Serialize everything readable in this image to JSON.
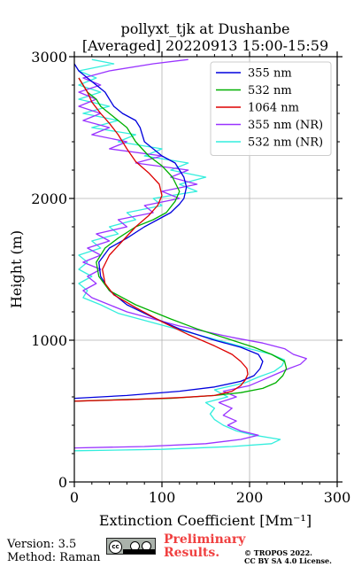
{
  "chart_data": {
    "type": "line",
    "orientation": "vertical-profile",
    "title": [
      "pollyxt_tjk at Dushanbe",
      "[Averaged] 20220913 15:00-15:59"
    ],
    "xlabel": "Extinction Coefficient [Mm⁻¹]",
    "ylabel": "Height (m)",
    "xlim": [
      0,
      300
    ],
    "ylim": [
      0,
      3000
    ],
    "xticks": [
      0,
      100,
      200,
      300
    ],
    "yticks": [
      0,
      1000,
      2000,
      3000
    ],
    "grid": true,
    "legend_position": "top-right",
    "series": [
      {
        "name": "355 nm",
        "color": "#0000dd",
        "points": [
          [
            0,
            590
          ],
          [
            60,
            610
          ],
          [
            120,
            640
          ],
          [
            160,
            670
          ],
          [
            190,
            710
          ],
          [
            205,
            750
          ],
          [
            212,
            800
          ],
          [
            215,
            850
          ],
          [
            210,
            900
          ],
          [
            190,
            950
          ],
          [
            160,
            1000
          ],
          [
            120,
            1080
          ],
          [
            90,
            1160
          ],
          [
            60,
            1250
          ],
          [
            40,
            1350
          ],
          [
            30,
            1450
          ],
          [
            28,
            1550
          ],
          [
            40,
            1650
          ],
          [
            60,
            1720
          ],
          [
            80,
            1800
          ],
          [
            95,
            1850
          ],
          [
            110,
            1900
          ],
          [
            120,
            1960
          ],
          [
            125,
            2000
          ],
          [
            128,
            2080
          ],
          [
            125,
            2150
          ],
          [
            115,
            2250
          ],
          [
            100,
            2300
          ],
          [
            80,
            2400
          ],
          [
            75,
            2500
          ],
          [
            70,
            2550
          ],
          [
            55,
            2600
          ],
          [
            45,
            2650
          ],
          [
            40,
            2700
          ],
          [
            35,
            2750
          ],
          [
            25,
            2800
          ],
          [
            15,
            2850
          ],
          [
            5,
            2900
          ],
          [
            0,
            2950
          ]
        ]
      },
      {
        "name": "532 nm",
        "color": "#00b000",
        "points": [
          [
            0,
            570
          ],
          [
            50,
            580
          ],
          [
            110,
            590
          ],
          [
            160,
            610
          ],
          [
            190,
            630
          ],
          [
            215,
            660
          ],
          [
            230,
            700
          ],
          [
            238,
            750
          ],
          [
            242,
            800
          ],
          [
            240,
            850
          ],
          [
            225,
            900
          ],
          [
            205,
            950
          ],
          [
            180,
            1000
          ],
          [
            140,
            1080
          ],
          [
            110,
            1150
          ],
          [
            70,
            1250
          ],
          [
            40,
            1350
          ],
          [
            28,
            1450
          ],
          [
            25,
            1550
          ],
          [
            35,
            1650
          ],
          [
            50,
            1720
          ],
          [
            70,
            1800
          ],
          [
            90,
            1850
          ],
          [
            105,
            1900
          ],
          [
            115,
            1980
          ],
          [
            120,
            2050
          ],
          [
            112,
            2150
          ],
          [
            100,
            2230
          ],
          [
            85,
            2300
          ],
          [
            70,
            2400
          ],
          [
            60,
            2500
          ],
          [
            50,
            2550
          ],
          [
            40,
            2600
          ],
          [
            30,
            2650
          ],
          [
            25,
            2700
          ],
          [
            15,
            2750
          ],
          [
            10,
            2800
          ],
          [
            5,
            2850
          ]
        ]
      },
      {
        "name": "1064 nm",
        "color": "#dd0000",
        "points": [
          [
            0,
            570
          ],
          [
            60,
            580
          ],
          [
            120,
            595
          ],
          [
            160,
            610
          ],
          [
            180,
            640
          ],
          [
            190,
            680
          ],
          [
            195,
            720
          ],
          [
            198,
            760
          ],
          [
            197,
            800
          ],
          [
            190,
            850
          ],
          [
            180,
            900
          ],
          [
            160,
            960
          ],
          [
            130,
            1040
          ],
          [
            100,
            1130
          ],
          [
            70,
            1230
          ],
          [
            45,
            1320
          ],
          [
            35,
            1400
          ],
          [
            32,
            1500
          ],
          [
            40,
            1600
          ],
          [
            55,
            1700
          ],
          [
            70,
            1800
          ],
          [
            85,
            1880
          ],
          [
            95,
            1950
          ],
          [
            100,
            2020
          ],
          [
            97,
            2100
          ],
          [
            85,
            2180
          ],
          [
            70,
            2260
          ],
          [
            60,
            2350
          ],
          [
            50,
            2450
          ],
          [
            40,
            2530
          ],
          [
            30,
            2600
          ],
          [
            20,
            2680
          ],
          [
            15,
            2750
          ],
          [
            10,
            2800
          ],
          [
            5,
            2850
          ]
        ]
      },
      {
        "name": "355 nm (NR)",
        "color": "#9933ff",
        "points": [
          [
            0,
            240
          ],
          [
            80,
            250
          ],
          [
            150,
            270
          ],
          [
            190,
            300
          ],
          [
            210,
            330
          ],
          [
            190,
            360
          ],
          [
            175,
            400
          ],
          [
            185,
            430
          ],
          [
            170,
            470
          ],
          [
            180,
            520
          ],
          [
            165,
            560
          ],
          [
            185,
            600
          ],
          [
            170,
            640
          ],
          [
            200,
            680
          ],
          [
            215,
            720
          ],
          [
            230,
            760
          ],
          [
            245,
            800
          ],
          [
            258,
            830
          ],
          [
            265,
            870
          ],
          [
            250,
            900
          ],
          [
            240,
            940
          ],
          [
            215,
            980
          ],
          [
            180,
            1020
          ],
          [
            150,
            1060
          ],
          [
            120,
            1100
          ],
          [
            90,
            1150
          ],
          [
            60,
            1200
          ],
          [
            40,
            1250
          ],
          [
            20,
            1300
          ],
          [
            10,
            1350
          ],
          [
            25,
            1400
          ],
          [
            15,
            1450
          ],
          [
            30,
            1500
          ],
          [
            10,
            1550
          ],
          [
            30,
            1600
          ],
          [
            15,
            1650
          ],
          [
            40,
            1700
          ],
          [
            25,
            1750
          ],
          [
            60,
            1800
          ],
          [
            50,
            1850
          ],
          [
            90,
            1900
          ],
          [
            80,
            1950
          ],
          [
            120,
            2000
          ],
          [
            100,
            2050
          ],
          [
            140,
            2100
          ],
          [
            110,
            2150
          ],
          [
            130,
            2200
          ],
          [
            70,
            2250
          ],
          [
            100,
            2300
          ],
          [
            40,
            2350
          ],
          [
            60,
            2400
          ],
          [
            20,
            2450
          ],
          [
            40,
            2500
          ],
          [
            10,
            2550
          ],
          [
            30,
            2600
          ],
          [
            5,
            2650
          ],
          [
            25,
            2700
          ],
          [
            5,
            2750
          ],
          [
            30,
            2800
          ],
          [
            10,
            2850
          ],
          [
            40,
            2900
          ],
          [
            90,
            2950
          ],
          [
            130,
            2980
          ]
        ]
      },
      {
        "name": "532 nm (NR)",
        "color": "#33eedd",
        "points": [
          [
            0,
            220
          ],
          [
            100,
            230
          ],
          [
            180,
            250
          ],
          [
            225,
            270
          ],
          [
            235,
            300
          ],
          [
            205,
            330
          ],
          [
            185,
            360
          ],
          [
            170,
            400
          ],
          [
            160,
            440
          ],
          [
            155,
            480
          ],
          [
            160,
            520
          ],
          [
            150,
            560
          ],
          [
            175,
            600
          ],
          [
            160,
            650
          ],
          [
            195,
            700
          ],
          [
            210,
            740
          ],
          [
            228,
            780
          ],
          [
            237,
            820
          ],
          [
            240,
            860
          ],
          [
            225,
            900
          ],
          [
            200,
            940
          ],
          [
            170,
            990
          ],
          [
            140,
            1040
          ],
          [
            110,
            1090
          ],
          [
            80,
            1140
          ],
          [
            50,
            1190
          ],
          [
            30,
            1250
          ],
          [
            10,
            1300
          ],
          [
            15,
            1350
          ],
          [
            5,
            1400
          ],
          [
            20,
            1450
          ],
          [
            5,
            1500
          ],
          [
            15,
            1550
          ],
          [
            5,
            1600
          ],
          [
            30,
            1650
          ],
          [
            20,
            1700
          ],
          [
            50,
            1750
          ],
          [
            40,
            1800
          ],
          [
            70,
            1850
          ],
          [
            60,
            1900
          ],
          [
            100,
            1950
          ],
          [
            90,
            2000
          ],
          [
            140,
            2050
          ],
          [
            120,
            2100
          ],
          [
            150,
            2150
          ],
          [
            110,
            2200
          ],
          [
            130,
            2250
          ],
          [
            80,
            2300
          ],
          [
            100,
            2350
          ],
          [
            50,
            2400
          ],
          [
            70,
            2450
          ],
          [
            20,
            2500
          ],
          [
            50,
            2550
          ],
          [
            10,
            2600
          ],
          [
            40,
            2650
          ],
          [
            5,
            2700
          ],
          [
            30,
            2750
          ],
          [
            5,
            2800
          ],
          [
            25,
            2850
          ],
          [
            5,
            2900
          ],
          [
            45,
            2950
          ],
          [
            20,
            2980
          ]
        ]
      }
    ]
  },
  "footer": {
    "version": "Version: 3.5",
    "method": "Method: Raman",
    "preliminary_line1": "Preliminary",
    "preliminary_line2": "Results.",
    "copyright_line1": "© TROPOS 2022.",
    "copyright_line2": "CC BY SA 4.0 License.",
    "cc_badge_text": "cc"
  }
}
